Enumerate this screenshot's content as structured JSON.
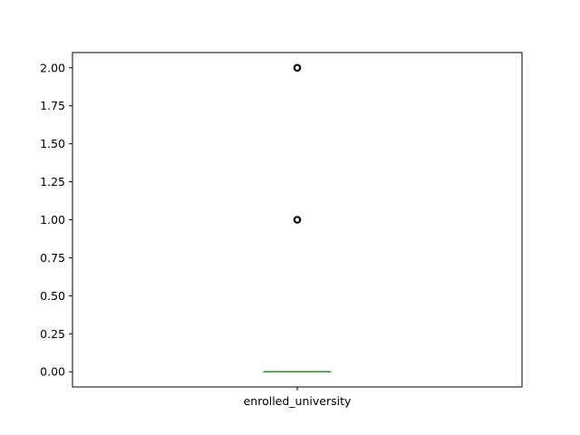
{
  "chart_data": {
    "type": "box",
    "title": "",
    "xlabel": "",
    "ylabel": "",
    "categories": [
      "enrolled_university"
    ],
    "series": [
      {
        "category": "enrolled_university",
        "q1": 0.0,
        "median": 0.0,
        "q3": 0.0,
        "whisker_low": 0.0,
        "whisker_high": 0.0,
        "outliers": [
          1.0,
          2.0
        ]
      }
    ],
    "ylim": [
      -0.1,
      2.1
    ],
    "yticks": [
      0.0,
      0.25,
      0.5,
      0.75,
      1.0,
      1.25,
      1.5,
      1.75,
      2.0
    ],
    "ytick_labels": [
      "0.00",
      "0.25",
      "0.50",
      "0.75",
      "1.00",
      "1.25",
      "1.50",
      "1.75",
      "2.00"
    ],
    "grid": false,
    "colors": {
      "median": "#2ca02c",
      "box": "#1f77b4",
      "whisker": "#1f77b4",
      "outlier_edge": "#000000",
      "axes": "#000000"
    }
  }
}
